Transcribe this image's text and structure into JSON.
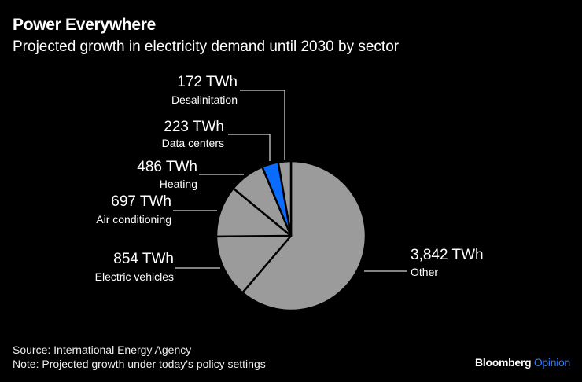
{
  "chart_data": {
    "type": "pie",
    "title": "Power Everywhere",
    "subtitle": "Projected growth in electricity demand until 2030 by sector",
    "unit": "TWh",
    "slices": [
      {
        "label": "Other",
        "value": 3842,
        "value_label": "3,842 TWh",
        "color": "#9b9b9b"
      },
      {
        "label": "Electric vehicles",
        "value": 854,
        "value_label": "854 TWh",
        "color": "#9b9b9b"
      },
      {
        "label": "Air conditioning",
        "value": 697,
        "value_label": "697 TWh",
        "color": "#9b9b9b"
      },
      {
        "label": "Heating",
        "value": 486,
        "value_label": "486 TWh",
        "color": "#9b9b9b"
      },
      {
        "label": "Data centers",
        "value": 223,
        "value_label": "223 TWh",
        "color": "#0a6cff"
      },
      {
        "label": "Desalinitation",
        "value": 172,
        "value_label": "172 TWh",
        "color": "#9b9b9b"
      }
    ],
    "start": "12 o'clock",
    "direction": "clockwise",
    "highlight": "Data centers"
  },
  "footer": {
    "source": "Source: International Energy Agency",
    "note": "Note: Projected growth under today's policy settings"
  },
  "brand": {
    "name": "Bloomberg",
    "section": "Opinion"
  }
}
